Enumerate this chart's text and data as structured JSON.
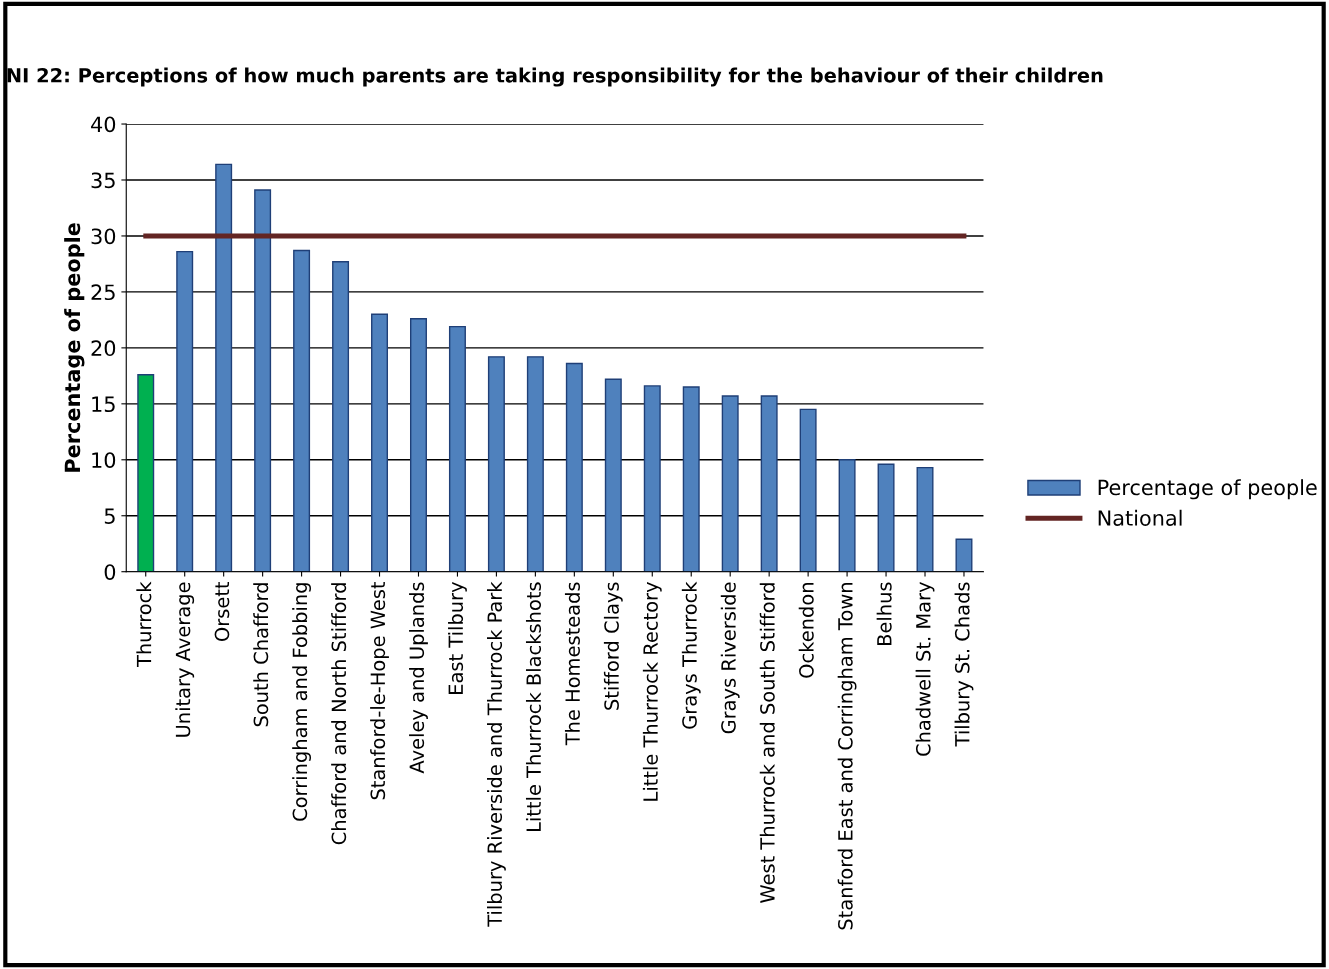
{
  "chart_data": {
    "type": "bar",
    "title": "NI 22: Perceptions of how much parents are taking responsibility for the behaviour of their children",
    "ylabel": "Percentage of people",
    "categories": [
      "Thurrock",
      "Unitary Average",
      "Orsett",
      "South Chafford",
      "Corringham and Fobbing",
      "Chafford and North Stifford",
      "Stanford-le-Hope West",
      "Aveley and Uplands",
      "East Tilbury",
      "Tilbury Riverside and Thurrock Park",
      "Little Thurrock Blackshots",
      "The Homesteads",
      "Stifford Clays",
      "Little Thurrock Rectory",
      "Grays Thurrock",
      "Grays Riverside",
      "West Thurrock and South Stifford",
      "Ockendon",
      "Stanford East and Corringham Town",
      "Belhus",
      "Chadwell St. Mary",
      "Tilbury St. Chads"
    ],
    "series": [
      {
        "name": "Percentage of people",
        "color": "#4f81bd",
        "colors": [
          "#00b050",
          "#4f81bd",
          "#4f81bd",
          "#4f81bd",
          "#4f81bd",
          "#4f81bd",
          "#4f81bd",
          "#4f81bd",
          "#4f81bd",
          "#4f81bd",
          "#4f81bd",
          "#4f81bd",
          "#4f81bd",
          "#4f81bd",
          "#4f81bd",
          "#4f81bd",
          "#4f81bd",
          "#4f81bd",
          "#4f81bd",
          "#4f81bd",
          "#4f81bd",
          "#4f81bd"
        ],
        "values": [
          17.6,
          28.6,
          36.4,
          34.1,
          28.7,
          27.7,
          23.0,
          22.6,
          21.9,
          19.2,
          19.2,
          18.6,
          17.2,
          16.6,
          16.5,
          15.7,
          15.7,
          14.5,
          10.0,
          9.6,
          9.3,
          2.9
        ]
      },
      {
        "name": "National",
        "type": "line",
        "color": "#632523",
        "values": [
          30,
          30,
          30,
          30,
          30,
          30,
          30,
          30,
          30,
          30,
          30,
          30,
          30,
          30,
          30,
          30,
          30,
          30,
          30,
          30,
          30,
          30
        ]
      }
    ],
    "ylim": [
      0,
      40
    ],
    "yticks": [
      0,
      5,
      10,
      15,
      20,
      25,
      30,
      35,
      40
    ],
    "grid": "y",
    "legend": "right",
    "marker": "none",
    "line_style": "solid"
  }
}
